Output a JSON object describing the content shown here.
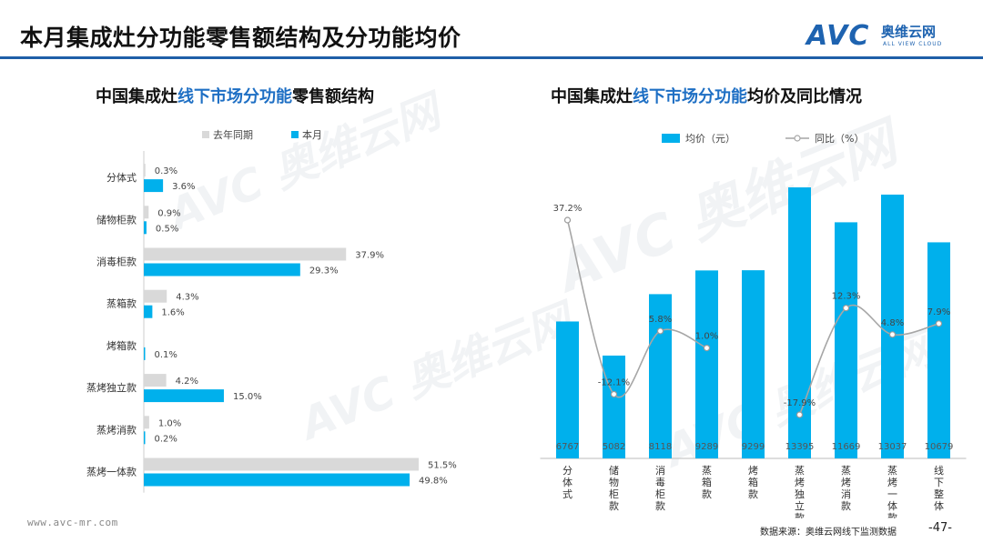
{
  "page": {
    "title": "本月集成灶分功能零售额结构及分功能均价",
    "logo": {
      "brand": "AVC",
      "cn": "奥维云网",
      "en": "ALL VIEW CLOUD"
    },
    "footer_url": "www.avc-mr.com",
    "source": "数据来源：奥维云网线下监测数据",
    "page_number": "-47-"
  },
  "chart_data": [
    {
      "type": "bar",
      "orientation": "horizontal",
      "title": "中国集成灶线下市场分功能零售额结构",
      "title_parts": [
        "中国集成灶",
        "线下市场分功能",
        "零售额结构"
      ],
      "legend_position": "top",
      "categories": [
        "分体式",
        "储物柜款",
        "消毒柜款",
        "蒸箱款",
        "烤箱款",
        "蒸烤独立款",
        "蒸烤消款",
        "蒸烤一体款"
      ],
      "series": [
        {
          "name": "去年同期",
          "color": "#d9d9d9",
          "values": [
            0.3,
            0.9,
            37.9,
            4.3,
            null,
            4.2,
            1.0,
            51.5
          ],
          "labels": [
            "0.3%",
            "0.9%",
            "37.9%",
            "4.3%",
            "",
            "4.2%",
            "1.0%",
            "51.5%"
          ]
        },
        {
          "name": "本月",
          "color": "#00b0ec",
          "values": [
            3.6,
            0.5,
            29.3,
            1.6,
            0.1,
            15.0,
            0.2,
            49.8
          ],
          "labels": [
            "3.6%",
            "0.5%",
            "29.3%",
            "1.6%",
            "0.1%",
            "15.0%",
            "0.2%",
            "49.8%"
          ]
        }
      ],
      "xlim": [
        0,
        51.5
      ],
      "unit": "%"
    },
    {
      "type": "bar+line",
      "title": "中国集成灶线下市场分功能均价及同比情况",
      "title_parts": [
        "中国集成灶",
        "线下市场分功能",
        "均价及同比情况"
      ],
      "legend_position": "top",
      "categories": [
        "分体式",
        "储物柜款",
        "消毒柜款",
        "蒸箱款",
        "烤箱款",
        "蒸烤独立款",
        "蒸烤消款",
        "蒸烤一体款",
        "线下整体"
      ],
      "bar_series": {
        "name": "均价（元）",
        "color": "#00b0ec",
        "values": [
          6767,
          5082,
          8118,
          9289,
          9299,
          13395,
          11669,
          13037,
          10679
        ],
        "labels": [
          "6767",
          "5082",
          "8118",
          "9289",
          "9299",
          "13395",
          "11669",
          "13037",
          "10679"
        ]
      },
      "line_series": {
        "name": "同比（%）",
        "color": "#a6a6a6",
        "values": [
          37.2,
          -12.1,
          5.8,
          1.0,
          null,
          -17.9,
          12.3,
          4.8,
          7.9
        ],
        "labels": [
          "37.2%",
          "-12.1%",
          "5.8%",
          "1.0%",
          "",
          "-17.9%",
          "12.3%",
          "4.8%",
          "7.9%"
        ]
      },
      "y_left_range": [
        0,
        13395
      ],
      "y_right_range": [
        -17.9,
        37.2
      ]
    }
  ]
}
